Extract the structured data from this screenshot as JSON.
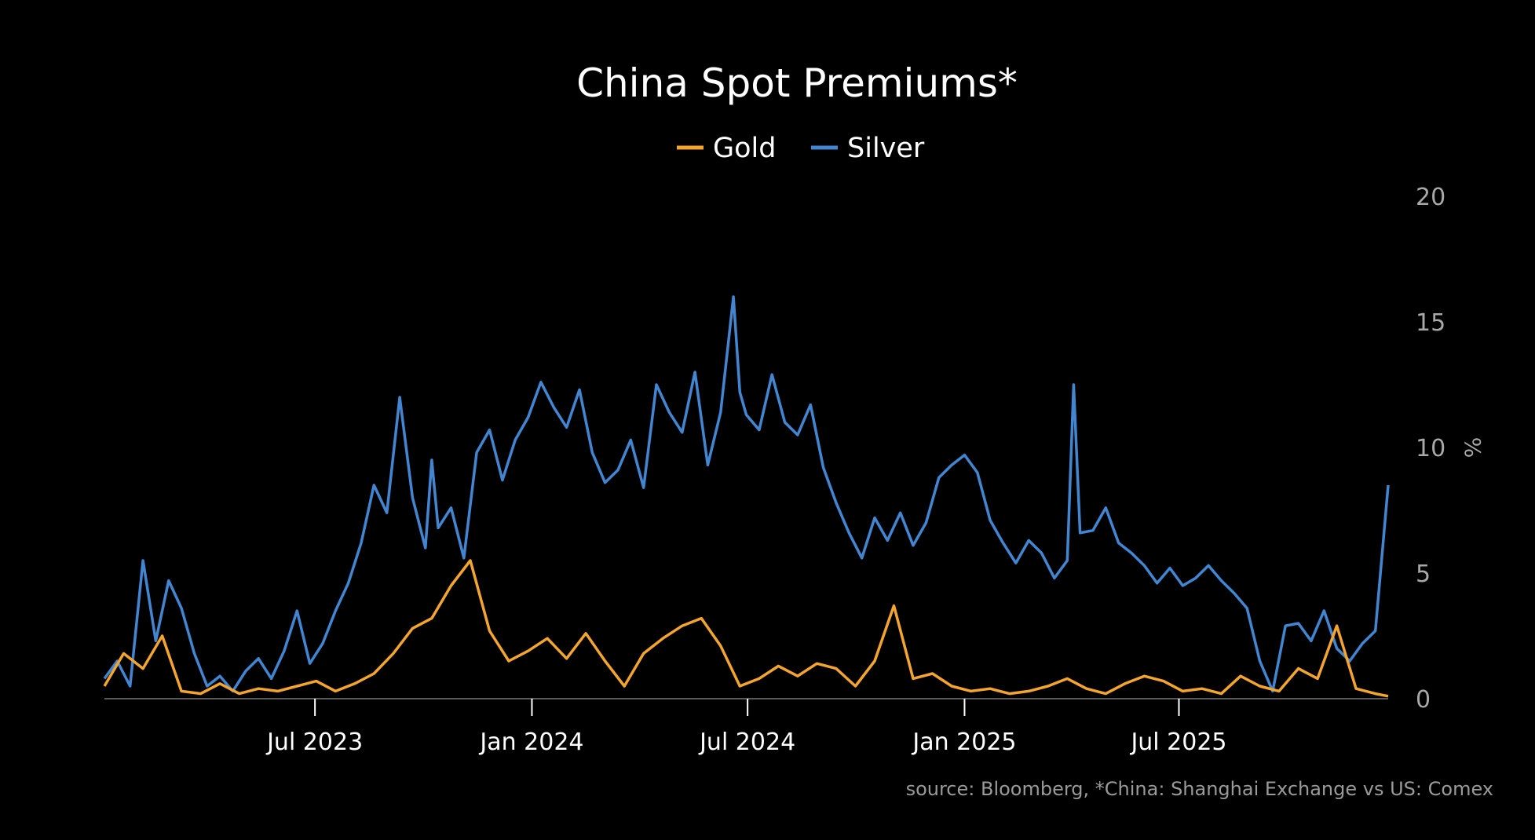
{
  "chart_data": {
    "type": "line",
    "title": "China Spot Premiums*",
    "ylabel": "%",
    "xlabel": "",
    "ylim": [
      0,
      20
    ],
    "yticks": [
      "0",
      "5",
      "10",
      "15",
      "20"
    ],
    "xlim": [
      0,
      1000
    ],
    "xticks": [
      {
        "label": "Jul 2023",
        "pos": 164
      },
      {
        "label": "Jan 2024",
        "pos": 333
      },
      {
        "label": "Jul 2024",
        "pos": 501
      },
      {
        "label": "Jan 2025",
        "pos": 670
      },
      {
        "label": "Jul 2025",
        "pos": 837
      }
    ],
    "legend": {
      "position": "top-center",
      "entries": [
        "Gold",
        "Silver"
      ]
    },
    "source": "source: Bloomberg, *China: Shanghai Exchange vs US: Comex",
    "series": [
      {
        "name": "Gold",
        "color": "#f4a52e",
        "x": [
          0,
          15,
          30,
          45,
          60,
          75,
          90,
          105,
          120,
          135,
          150,
          165,
          180,
          195,
          210,
          225,
          240,
          255,
          270,
          285,
          300,
          315,
          330,
          345,
          360,
          375,
          390,
          405,
          420,
          435,
          450,
          465,
          480,
          495,
          510,
          525,
          540,
          555,
          570,
          585,
          600,
          615,
          630,
          645,
          660,
          675,
          690,
          705,
          720,
          735,
          750,
          765,
          780,
          795,
          810,
          825,
          840,
          855,
          870,
          885,
          900,
          915,
          930,
          945,
          960,
          975,
          990,
          1000
        ],
        "values": [
          0.5,
          1.8,
          1.2,
          2.5,
          0.3,
          0.2,
          0.6,
          0.2,
          0.4,
          0.3,
          0.5,
          0.7,
          0.3,
          0.6,
          1.0,
          1.8,
          2.8,
          3.2,
          4.5,
          5.5,
          2.7,
          1.5,
          1.9,
          2.4,
          1.6,
          2.6,
          1.5,
          0.5,
          1.8,
          2.4,
          2.9,
          3.2,
          2.1,
          0.5,
          0.8,
          1.3,
          0.9,
          1.4,
          1.2,
          0.5,
          1.5,
          3.7,
          0.8,
          1.0,
          0.5,
          0.3,
          0.4,
          0.2,
          0.3,
          0.5,
          0.8,
          0.4,
          0.2,
          0.6,
          0.9,
          0.7,
          0.3,
          0.4,
          0.2,
          0.9,
          0.5,
          0.3,
          1.2,
          0.8,
          2.9,
          0.4,
          0.2,
          0.1
        ]
      },
      {
        "name": "Silver",
        "color": "#4286d2",
        "x": [
          0,
          10,
          20,
          30,
          40,
          50,
          60,
          70,
          80,
          90,
          100,
          110,
          120,
          130,
          140,
          150,
          160,
          170,
          180,
          190,
          200,
          210,
          220,
          230,
          240,
          250,
          255,
          260,
          270,
          280,
          290,
          300,
          310,
          320,
          330,
          340,
          350,
          360,
          370,
          380,
          390,
          400,
          410,
          420,
          430,
          440,
          450,
          460,
          470,
          480,
          490,
          495,
          500,
          510,
          520,
          530,
          540,
          550,
          560,
          570,
          580,
          590,
          600,
          610,
          620,
          630,
          640,
          650,
          660,
          670,
          680,
          690,
          700,
          710,
          720,
          730,
          740,
          750,
          755,
          760,
          770,
          780,
          790,
          800,
          810,
          820,
          830,
          840,
          850,
          860,
          870,
          880,
          890,
          900,
          910,
          920,
          930,
          940,
          950,
          960,
          970,
          980,
          990,
          1000
        ],
        "values": [
          0.8,
          1.5,
          0.5,
          5.5,
          2.3,
          4.7,
          3.6,
          1.8,
          0.5,
          0.9,
          0.3,
          1.1,
          1.6,
          0.8,
          1.9,
          3.5,
          1.4,
          2.2,
          3.5,
          4.6,
          6.2,
          8.5,
          7.4,
          12.0,
          8.0,
          6.0,
          9.5,
          6.8,
          7.6,
          5.6,
          9.8,
          10.7,
          8.7,
          10.3,
          11.2,
          12.6,
          11.6,
          10.8,
          12.3,
          9.8,
          8.6,
          9.1,
          10.3,
          8.4,
          12.5,
          11.4,
          10.6,
          13.0,
          9.3,
          11.4,
          16.0,
          12.2,
          11.3,
          10.7,
          12.9,
          11.0,
          10.5,
          11.7,
          9.2,
          7.8,
          6.6,
          5.6,
          7.2,
          6.3,
          7.4,
          6.1,
          7.0,
          8.8,
          9.3,
          9.7,
          9.0,
          7.1,
          6.2,
          5.4,
          6.3,
          5.8,
          4.8,
          5.5,
          12.5,
          6.6,
          6.7,
          7.6,
          6.2,
          5.8,
          5.3,
          4.6,
          5.2,
          4.5,
          4.8,
          5.3,
          4.7,
          4.2,
          3.6,
          1.5,
          0.3,
          2.9,
          3.0,
          2.3,
          3.5,
          2.0,
          1.5,
          2.2,
          2.7,
          8.5
        ]
      }
    ]
  }
}
